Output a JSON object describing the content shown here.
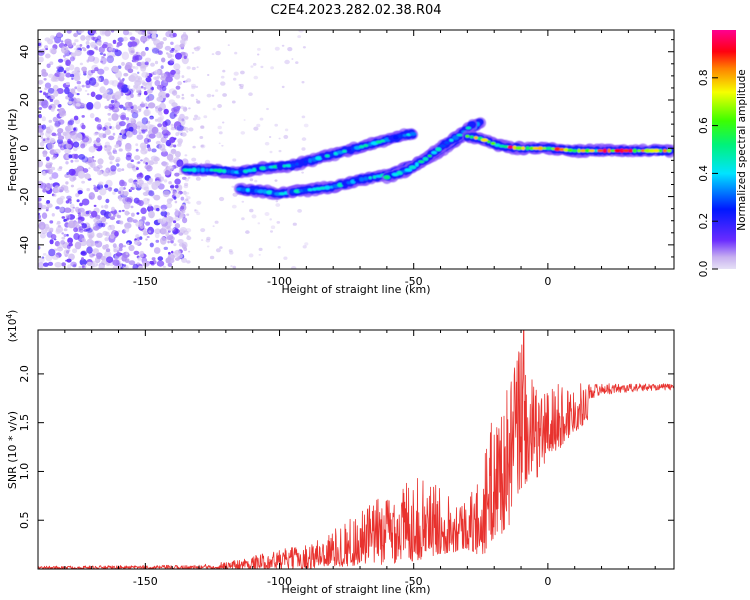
{
  "figure_title": "C2E4.2023.282.02.38.R04",
  "colors": {
    "snr_line": "#e8322e",
    "spectrogram_noise": "#9b60f0",
    "axis": "#000000"
  },
  "chart_data": [
    {
      "type": "heatmap",
      "title": "",
      "xlabel": "Height of straight line (km)",
      "ylabel": "Frequency (Hz)",
      "xlim": [
        -190,
        47
      ],
      "ylim": [
        -50,
        49
      ],
      "x_ticks": [
        -150,
        -100,
        -50,
        0
      ],
      "y_ticks": [
        -40,
        -20,
        0,
        20,
        40
      ],
      "colorbar": {
        "label": "Normalized spectral amplitude",
        "range": [
          0,
          1
        ],
        "ticks": [
          "0.0",
          "0.2",
          "0.4",
          "0.6",
          "0.8"
        ],
        "tick_values": [
          0,
          0.2,
          0.4,
          0.6,
          0.8
        ],
        "colormap": "rainbow (purple-blue-cyan-green-yellow-red-magenta)"
      },
      "noise_region": {
        "x": [
          -190,
          -135
        ],
        "description": "scattered low-amplitude purple speckle"
      },
      "tracks": [
        {
          "name": "",
          "points": [
            [
              -135,
              -9
            ],
            [
              -125,
              -9
            ],
            [
              -115,
              -10
            ],
            [
              -105,
              -8
            ],
            [
              -95,
              -7
            ],
            [
              -85,
              -4
            ],
            [
              -75,
              -1
            ],
            [
              -65,
              2
            ],
            [
              -55,
              5
            ],
            [
              -50,
              6
            ]
          ],
          "amplitude": 0.5
        },
        {
          "name": "",
          "points": [
            [
              -115,
              -17
            ],
            [
              -105,
              -18
            ],
            [
              -100,
              -19
            ],
            [
              -95,
              -18
            ]
          ],
          "amplitude": 0.45
        },
        {
          "name": "",
          "points": [
            [
              -95,
              -18
            ],
            [
              -80,
              -16
            ],
            [
              -70,
              -13
            ],
            [
              -60,
              -11
            ],
            [
              -50,
              -7
            ],
            [
              -40,
              -1
            ],
            [
              -32,
              5
            ],
            [
              -25,
              11
            ]
          ],
          "amplitude": 0.5
        },
        {
          "name": "",
          "points": [
            [
              -60,
              -12
            ],
            [
              -52,
              -9
            ],
            [
              -45,
              -4
            ],
            [
              -38,
              2
            ],
            [
              -32,
              6
            ],
            [
              -28,
              10
            ]
          ],
          "amplitude": 0.55
        },
        {
          "name": "",
          "points": [
            [
              -30,
              5
            ],
            [
              -25,
              4
            ],
            [
              -18,
              1
            ],
            [
              -10,
              0
            ],
            [
              0,
              0
            ],
            [
              10,
              -1
            ],
            [
              20,
              -1
            ],
            [
              30,
              -1
            ],
            [
              40,
              -1
            ],
            [
              46,
              -1
            ]
          ],
          "amplitude": 0.85
        }
      ]
    },
    {
      "type": "line",
      "title": "",
      "xlabel": "Height of straight line (km)",
      "ylabel": "SNR (10 * v/v)",
      "y_multiplier": "(x10^4)",
      "xlim": [
        -190,
        47
      ],
      "ylim": [
        0,
        24500
      ],
      "x_ticks": [
        -150,
        -100,
        -50,
        0
      ],
      "y_ticks": [
        5000,
        10000,
        15000,
        20000
      ],
      "y_tick_labels": [
        "0.5",
        "1.0",
        "1.5",
        "2.0"
      ],
      "series": [
        {
          "name": "",
          "envelope": {
            "x": [
              -190,
              -130,
              -115,
              -100,
              -90,
              -80,
              -70,
              -60,
              -50,
              -40,
              -30,
              -25,
              -20,
              -15,
              -10,
              -5,
              0,
              10,
              20,
              30,
              40,
              47
            ],
            "y_low": [
              0,
              0,
              0,
              0,
              0,
              200,
              300,
              500,
              800,
              1500,
              2000,
              1000,
              3000,
              4000,
              8000,
              9000,
              11000,
              14000,
              16500,
              17000,
              17500,
              17500
            ],
            "y_high": [
              300,
              400,
              1000,
              2000,
              2500,
              4000,
              6000,
              8000,
              9500,
              8500,
              7000,
              10000,
              16500,
              18500,
              24500,
              18500,
              19000,
              19000,
              19000,
              19000,
              19000,
              19000
            ]
          },
          "peak": {
            "x": -9,
            "y": 24500
          }
        }
      ]
    }
  ]
}
